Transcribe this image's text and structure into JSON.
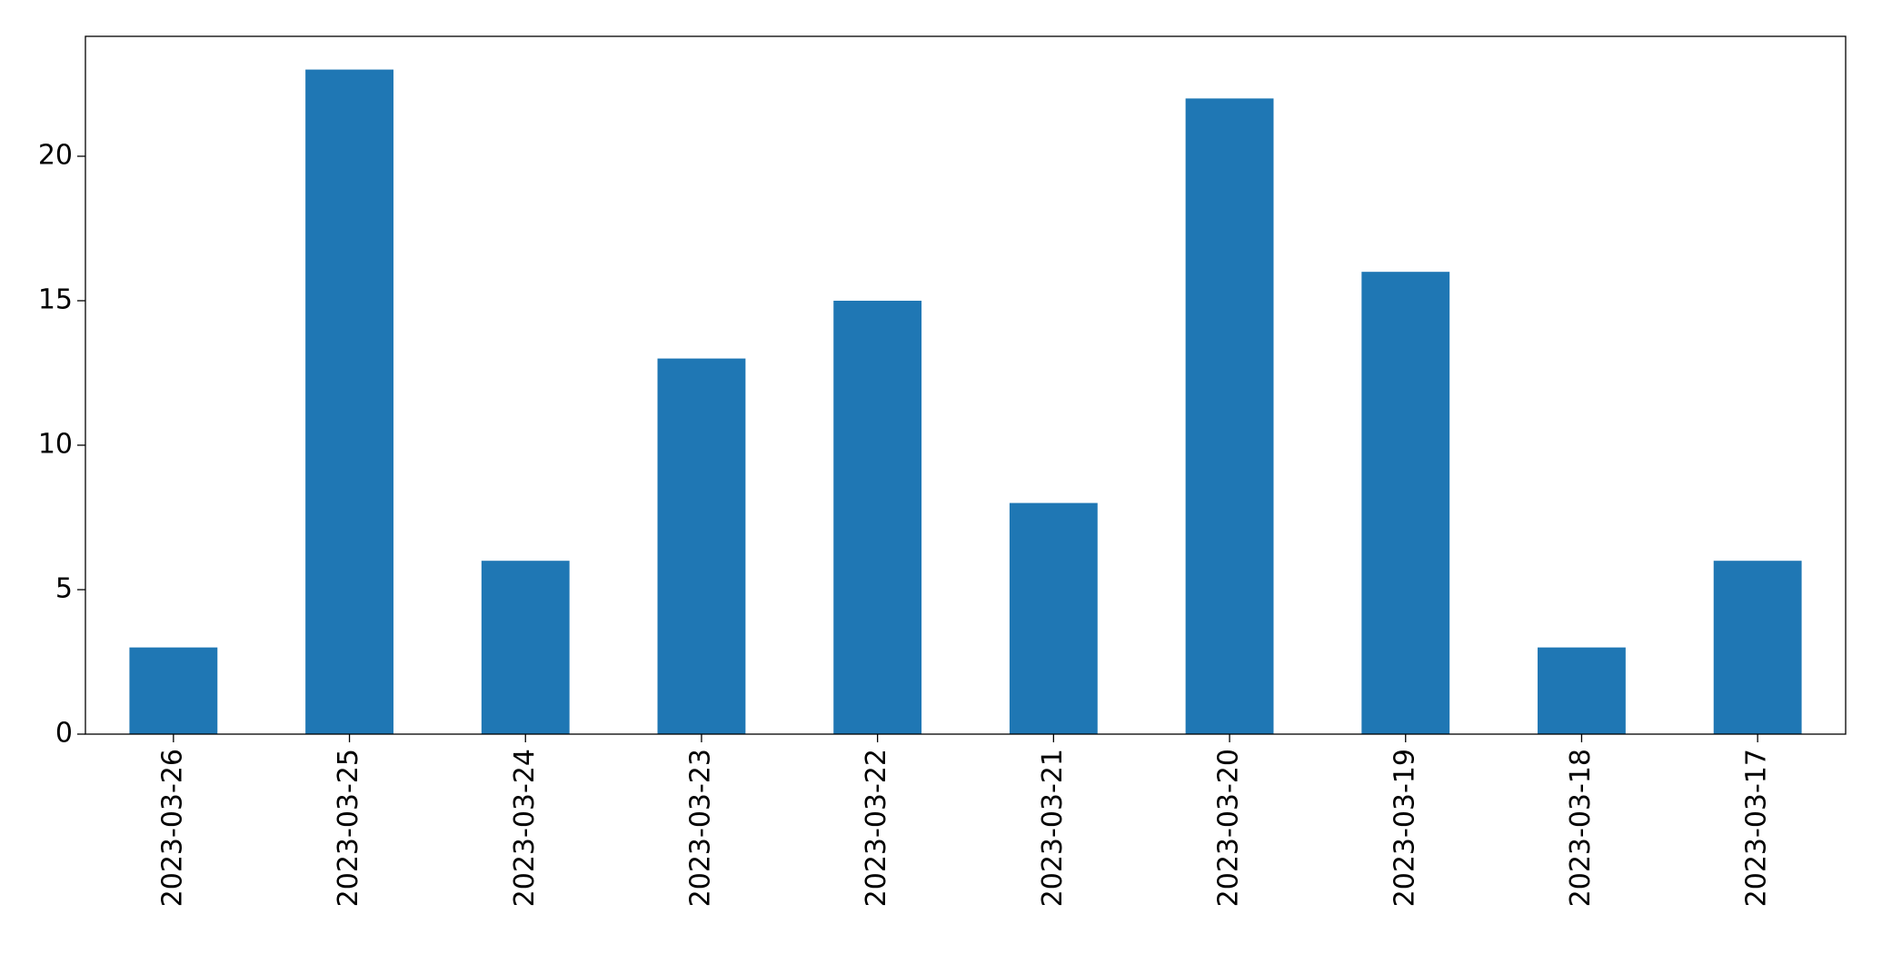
{
  "chart_data": {
    "type": "bar",
    "categories": [
      "2023-03-26",
      "2023-03-25",
      "2023-03-24",
      "2023-03-23",
      "2023-03-22",
      "2023-03-21",
      "2023-03-20",
      "2023-03-19",
      "2023-03-18",
      "2023-03-17"
    ],
    "values": [
      3,
      23,
      6,
      13,
      15,
      8,
      22,
      16,
      3,
      6
    ],
    "color": "#1f77b4",
    "ylim": [
      0,
      24.15
    ],
    "yticks": [
      0,
      5,
      10,
      15,
      20
    ],
    "grid": false
  }
}
